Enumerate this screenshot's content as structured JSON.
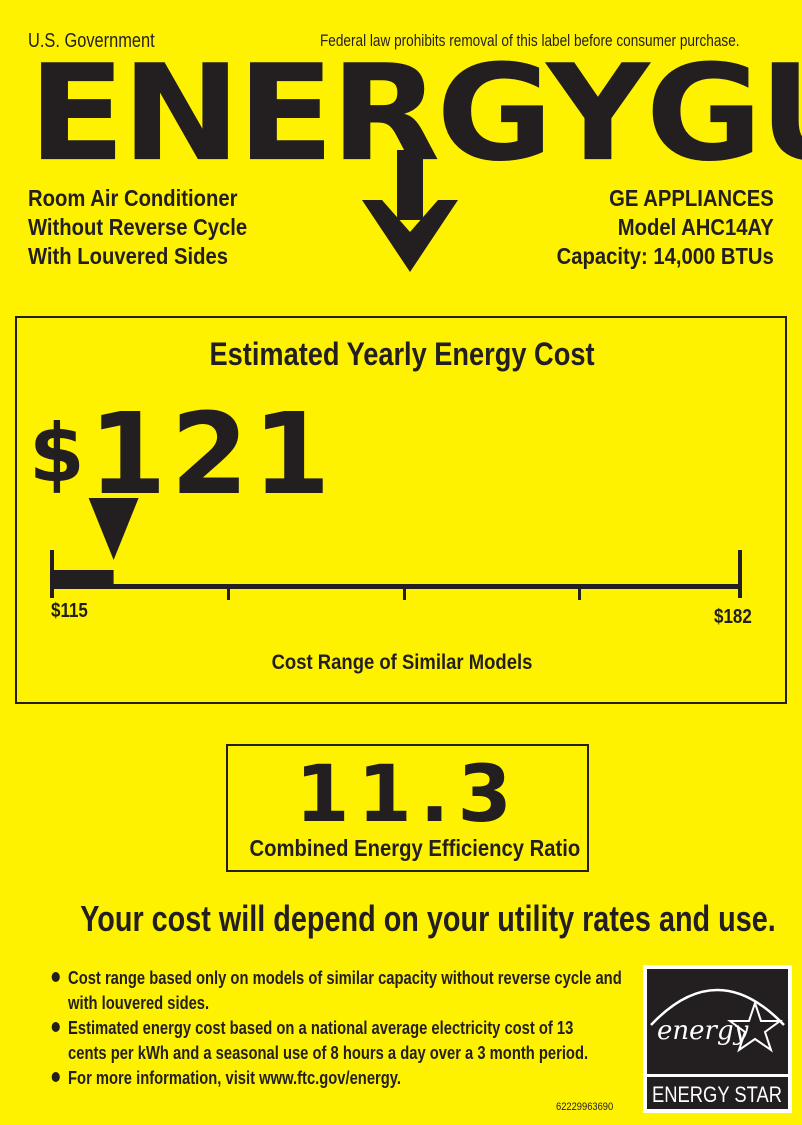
{
  "header": {
    "government": "U.S. Government",
    "warning": "Federal law prohibits removal of this label before consumer purchase.",
    "title": "ENERGYGUIDE"
  },
  "product": {
    "type_lines": [
      "Room Air Conditioner",
      "Without Reverse Cycle",
      "With Louvered Sides"
    ],
    "manufacturer": "GE APPLIANCES",
    "model": "Model AHC14AY",
    "capacity": "Capacity: 14,000 BTUs"
  },
  "cost": {
    "heading": "Estimated Yearly Energy Cost",
    "currency": "$",
    "value": "121",
    "range_low": "$115",
    "range_high": "$182",
    "range_label": "Cost Range of Similar Models",
    "value_num": 121,
    "low_num": 115,
    "high_num": 182
  },
  "efficiency": {
    "value": "11.3",
    "label": "Combined Energy Efficiency Ratio"
  },
  "depend": "Your cost will depend on your utility rates and use.",
  "notes": [
    "Cost range based only on models of similar capacity without reverse cycle and with louvered sides.",
    "Estimated energy cost based on a national average electricity cost of 13 cents per kWh and a seasonal use of 8 hours a day over a 3 month period.",
    "For more information, visit www.ftc.gov/energy."
  ],
  "code": "62229963690",
  "energy_star": {
    "script": "energy",
    "label": "ENERGY STAR"
  },
  "colors": {
    "background": "#fff200",
    "ink": "#231f20"
  }
}
